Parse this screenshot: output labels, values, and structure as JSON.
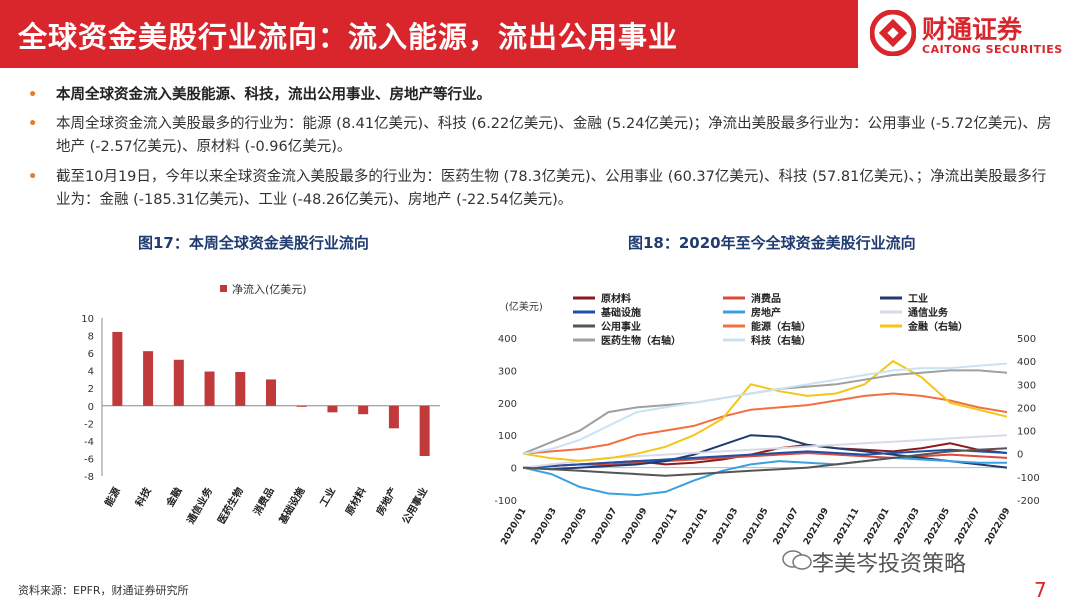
{
  "header": {
    "title": "全球资金美股行业流向：流入能源，流出公用事业",
    "logo_cn": "财通证券",
    "logo_en": "CAITONG SECURITIES"
  },
  "bullets": [
    "本周全球资金流入美股能源、科技，流出公用事业、房地产等行业。",
    "本周全球资金流入美股最多的行业为：能源 (8.41亿美元)、科技 (6.22亿美元)、金融 (5.24亿美元)；净流出美股最多行业为：公用事业 (-5.72亿美元)、房地产 (-2.57亿美元)、原材料 (-0.96亿美元)。",
    "截至10月19日，今年以来全球资金流入美股最多的行业为：医药生物 (78.3亿美元)、公用事业 (60.37亿美元)、科技 (57.81亿美元)、；净流出美股最多行业为：金融 (-185.31亿美元)、工业 (-48.26亿美元)、房地产 (-22.54亿美元)。"
  ],
  "fig17_title": "图17：本周全球资金美股行业流向",
  "fig18_title": "图18：2020年至今全球资金美股行业流向",
  "source": "资料来源：EPFR，财通证券研究所",
  "watermark": "李美岑投资策略",
  "page_number": "7",
  "colors": {
    "brand_red": "#d9262d",
    "bar_red": "#c0393b",
    "title_navy": "#1f3b70"
  },
  "chart_data": [
    {
      "type": "bar",
      "title": "图17：本周全球资金美股行业流向",
      "legend": "净流入(亿美元)",
      "categories": [
        "能源",
        "科技",
        "金融",
        "通信业务",
        "医药生物",
        "消费品",
        "基础设施",
        "工业",
        "原材料",
        "房地产",
        "公用事业"
      ],
      "values": [
        8.41,
        6.22,
        5.24,
        3.9,
        3.85,
        3.0,
        -0.1,
        -0.75,
        -0.96,
        -2.57,
        -5.72
      ],
      "ylim": [
        -8,
        10
      ],
      "yticks": [
        -8,
        -6,
        -4,
        -2,
        0,
        2,
        4,
        6,
        8,
        10
      ]
    },
    {
      "type": "line",
      "title": "图18：2020年至今全球资金美股行业流向",
      "ylabel": "(亿美元)",
      "ylim_left": [
        -100,
        400
      ],
      "yticks_left": [
        -100,
        0,
        100,
        200,
        300,
        400
      ],
      "ylim_right": [
        -200,
        500
      ],
      "yticks_right": [
        -200,
        -100,
        0,
        100,
        200,
        300,
        400,
        500
      ],
      "x_ticks": [
        "2020/01",
        "2020/03",
        "2020/05",
        "2020/07",
        "2020/09",
        "2020/11",
        "2021/01",
        "2021/03",
        "2021/05",
        "2021/07",
        "2021/09",
        "2021/11",
        "2022/01",
        "2022/03",
        "2022/05",
        "2022/07",
        "2022/09"
      ],
      "series": [
        {
          "name": "原材料",
          "color": "#8b1c1c",
          "axis": "left",
          "values": [
            0,
            5,
            10,
            15,
            20,
            10,
            15,
            25,
            40,
            60,
            70,
            60,
            55,
            50,
            60,
            75,
            55,
            45
          ]
        },
        {
          "name": "消费品",
          "color": "#d94b3a",
          "axis": "left",
          "values": [
            0,
            5,
            10,
            8,
            15,
            20,
            25,
            30,
            35,
            40,
            45,
            40,
            35,
            30,
            35,
            40,
            35,
            30
          ]
        },
        {
          "name": "工业",
          "color": "#1f3b70",
          "axis": "left",
          "values": [
            0,
            -5,
            0,
            5,
            10,
            20,
            40,
            70,
            100,
            95,
            70,
            60,
            50,
            40,
            30,
            20,
            10,
            0
          ]
        },
        {
          "name": "基础设施",
          "color": "#1f4fa8",
          "axis": "left",
          "values": [
            0,
            5,
            10,
            15,
            20,
            25,
            30,
            35,
            40,
            45,
            50,
            45,
            40,
            45,
            50,
            55,
            50,
            45
          ]
        },
        {
          "name": "房地产",
          "color": "#3ba0e0",
          "axis": "left",
          "values": [
            0,
            -20,
            -60,
            -80,
            -85,
            -75,
            -40,
            -10,
            10,
            20,
            15,
            10,
            20,
            30,
            25,
            20,
            15,
            15
          ]
        },
        {
          "name": "通信业务",
          "color": "#d7dbe6",
          "axis": "left",
          "values": [
            0,
            10,
            20,
            30,
            35,
            40,
            45,
            50,
            55,
            60,
            65,
            70,
            75,
            80,
            85,
            90,
            95,
            100
          ]
        },
        {
          "name": "公用事业",
          "color": "#555555",
          "axis": "left",
          "values": [
            0,
            -5,
            -10,
            -15,
            -20,
            -25,
            -20,
            -15,
            -10,
            -5,
            0,
            10,
            20,
            30,
            40,
            50,
            55,
            60
          ]
        },
        {
          "name": "能源（右轴）",
          "color": "#f07040",
          "axis": "right",
          "values": [
            0,
            10,
            20,
            40,
            80,
            100,
            120,
            160,
            190,
            200,
            210,
            230,
            250,
            260,
            250,
            230,
            200,
            180
          ]
        },
        {
          "name": "金融（右轴）",
          "color": "#f5c518",
          "axis": "right",
          "values": [
            0,
            -20,
            -30,
            -20,
            0,
            30,
            80,
            150,
            300,
            270,
            250,
            260,
            300,
            400,
            330,
            220,
            190,
            160
          ]
        },
        {
          "name": "医药生物（右轴）",
          "color": "#a0a0a0",
          "axis": "right",
          "values": [
            0,
            50,
            100,
            180,
            200,
            210,
            220,
            240,
            260,
            280,
            290,
            300,
            320,
            340,
            350,
            360,
            360,
            350
          ]
        },
        {
          "name": "科技（右轴）",
          "color": "#c9e3f5",
          "axis": "right",
          "values": [
            0,
            20,
            60,
            120,
            180,
            200,
            220,
            240,
            260,
            280,
            300,
            320,
            340,
            360,
            370,
            370,
            380,
            390
          ]
        }
      ]
    }
  ]
}
